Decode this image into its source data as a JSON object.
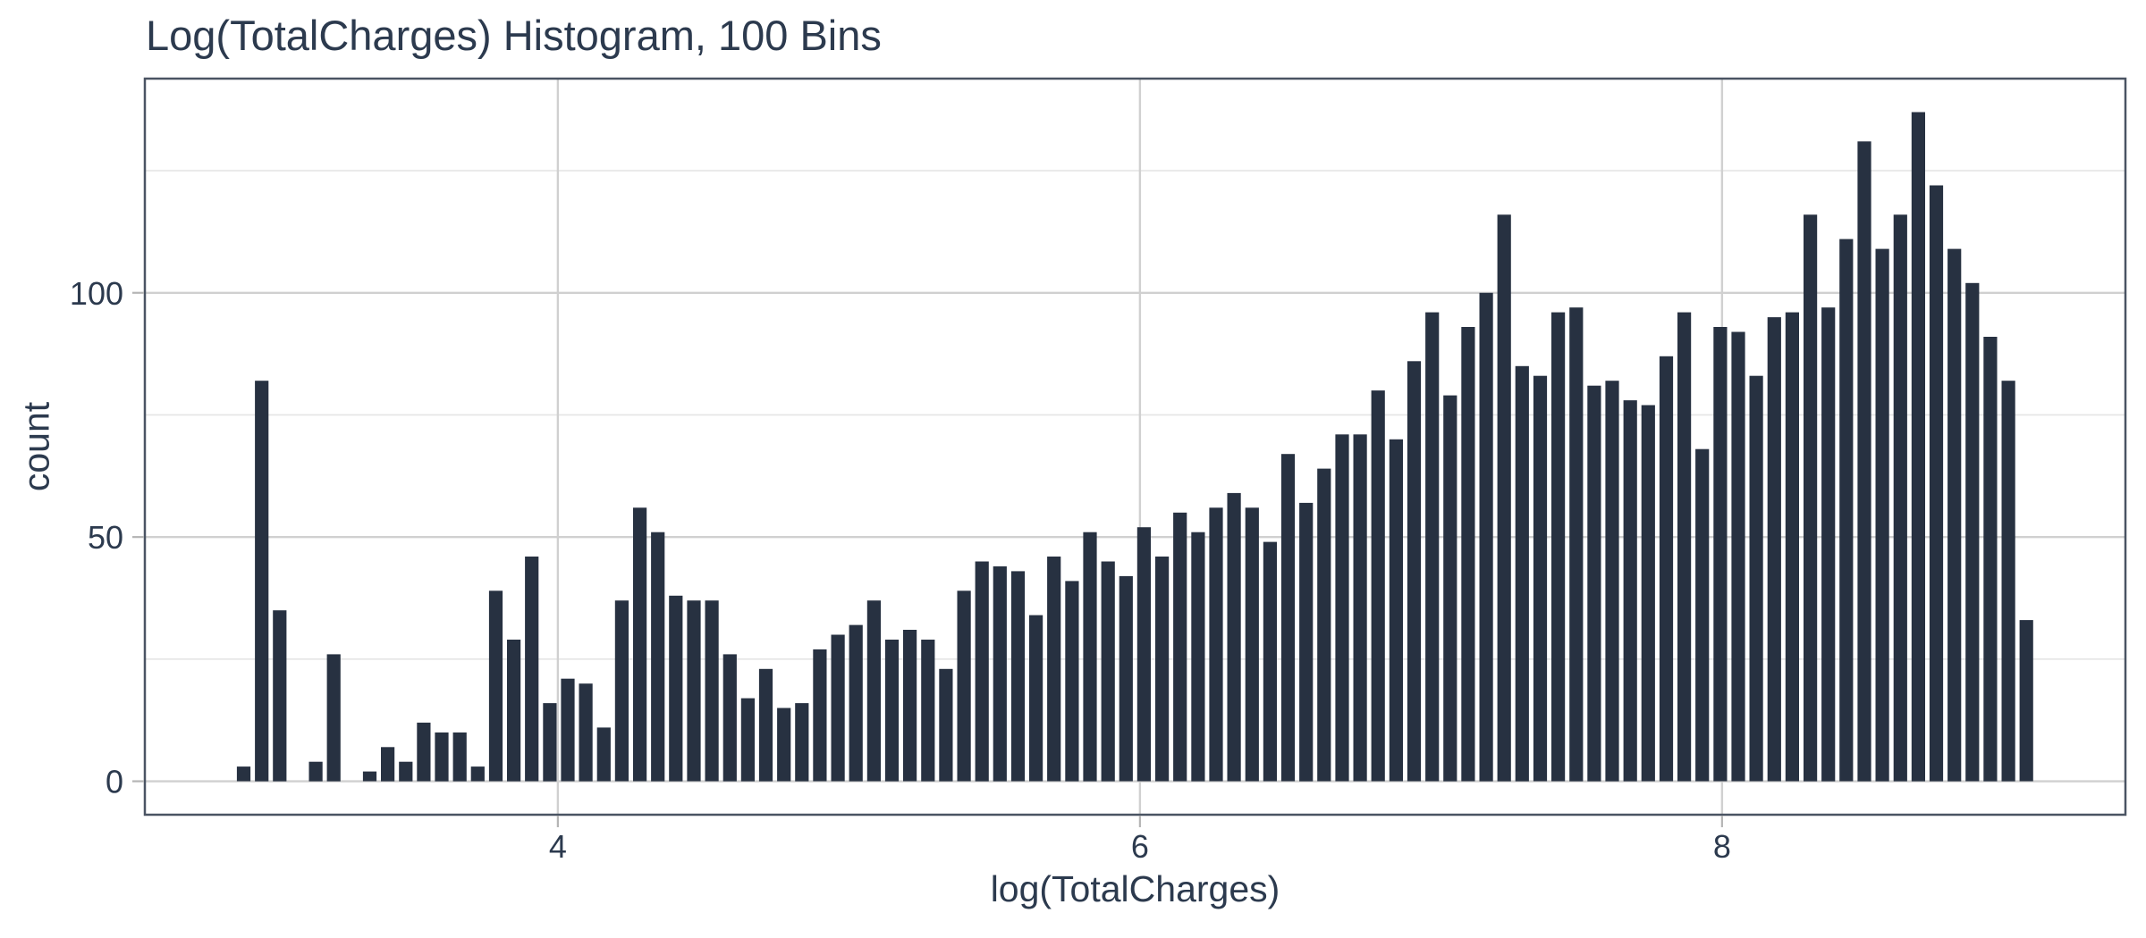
{
  "chart_data": {
    "type": "bar",
    "subtype": "histogram",
    "title": "Log(TotalCharges) Histogram, 100 Bins",
    "xlabel": "log(TotalCharges)",
    "ylabel": "count",
    "legend": "none",
    "bins": 100,
    "bin_start": 2.8896,
    "bin_width": 0.06187,
    "xlim": [
      2.581,
      9.386
    ],
    "ylim": [
      -6.85,
      143.85
    ],
    "x_major_ticks": [
      4,
      6,
      8
    ],
    "y_major_ticks": [
      0,
      50,
      100
    ],
    "y_minor_gridlines": [
      25,
      75,
      125
    ],
    "grid": "horizontal major+minor, vertical major only, light gray on white panel with full border",
    "counts": [
      3,
      82,
      35,
      0,
      4,
      26,
      0,
      2,
      7,
      4,
      12,
      10,
      10,
      3,
      39,
      29,
      46,
      16,
      21,
      20,
      11,
      37,
      56,
      51,
      38,
      37,
      37,
      26,
      17,
      23,
      15,
      16,
      27,
      30,
      32,
      37,
      29,
      31,
      29,
      23,
      39,
      45,
      44,
      43,
      34,
      46,
      41,
      51,
      45,
      42,
      52,
      46,
      55,
      51,
      56,
      59,
      56,
      49,
      67,
      57,
      64,
      71,
      71,
      80,
      70,
      86,
      96,
      79,
      93,
      100,
      116,
      85,
      83,
      96,
      97,
      81,
      82,
      78,
      77,
      87,
      96,
      68,
      93,
      92,
      83,
      95,
      96,
      116,
      97,
      111,
      131,
      109,
      116,
      137,
      122,
      109,
      102,
      91,
      82,
      33
    ],
    "colors": {
      "bar": "#273141",
      "text": "#2c3a4e",
      "grid_major": "#d0d0d0",
      "grid_minor": "#e5e5e5",
      "panel_border": "#4a5463",
      "tick_mark": "#b5b5b5",
      "background": "#ffffff"
    }
  }
}
